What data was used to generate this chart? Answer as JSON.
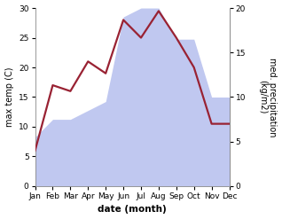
{
  "months": [
    "Jan",
    "Feb",
    "Mar",
    "Apr",
    "May",
    "Jun",
    "Jul",
    "Aug",
    "Sep",
    "Oct",
    "Nov",
    "Dec"
  ],
  "month_indices": [
    0,
    1,
    2,
    3,
    4,
    5,
    6,
    7,
    8,
    9,
    10,
    11
  ],
  "temperature": [
    6,
    17,
    16,
    21,
    19,
    28,
    25,
    29.5,
    25,
    20,
    10.5,
    10.5
  ],
  "precipitation": [
    5.5,
    7.5,
    7.5,
    8.5,
    9.5,
    19,
    20,
    20,
    16.5,
    16.5,
    10,
    10
  ],
  "temp_color": "#992233",
  "precip_color_fill": "#c0c8f0",
  "temp_ylim": [
    0,
    30
  ],
  "precip_ylim": [
    0,
    20
  ],
  "temp_yticks": [
    0,
    5,
    10,
    15,
    20,
    25,
    30
  ],
  "precip_yticks": [
    0,
    5,
    10,
    15,
    20
  ],
  "xlabel": "date (month)",
  "ylabel_left": "max temp (C)",
  "ylabel_right": "med. precipitation\n(kg/m2)",
  "linewidth": 1.6,
  "tick_labelsize": 6.5,
  "ylabel_fontsize": 7,
  "xlabel_fontsize": 7.5
}
